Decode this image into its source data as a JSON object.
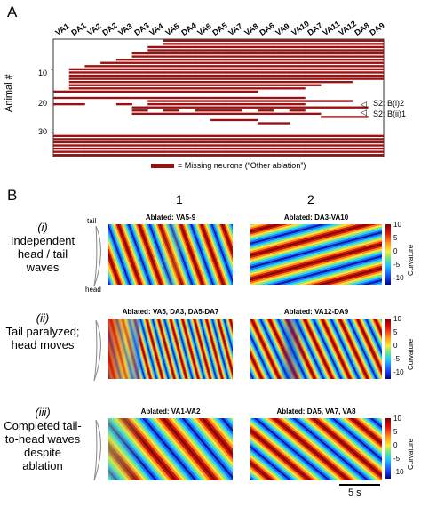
{
  "panel_a": {
    "letter": "A",
    "neurons": [
      "VA1",
      "DA1",
      "VA2",
      "DA2",
      "VA3",
      "DA3",
      "VA4",
      "VA5",
      "DA4",
      "VA6",
      "DA5",
      "VA7",
      "VA8",
      "DA6",
      "VA9",
      "VA10",
      "DA7",
      "VA11",
      "VA12",
      "DA8",
      "DA9"
    ],
    "y_axis_label": "Animal #",
    "y_ticks": [
      "10",
      "20",
      "30"
    ],
    "legend_text": "= Missing neurons (“Other ablation”)",
    "annotation_1": "S2: B(i)2",
    "annotation_2": "S2: B(ii)1",
    "bar_color": "#9b1111",
    "chart_data": {
      "type": "heatmap",
      "ylabel": "Animal #",
      "columns": [
        "VA1",
        "DA1",
        "VA2",
        "DA2",
        "VA3",
        "DA3",
        "VA4",
        "VA5",
        "DA4",
        "VA6",
        "DA5",
        "VA7",
        "VA8",
        "DA6",
        "VA9",
        "VA10",
        "DA7",
        "VA11",
        "VA12",
        "DA8",
        "DA9"
      ],
      "rows": [
        [
          0,
          0,
          0,
          0,
          0,
          0,
          0,
          1,
          1,
          1,
          1,
          1,
          1,
          1,
          1,
          1,
          1,
          1,
          1,
          1,
          1
        ],
        [
          0,
          0,
          0,
          0,
          0,
          0,
          0,
          1,
          1,
          1,
          1,
          1,
          1,
          1,
          1,
          1,
          1,
          1,
          1,
          1,
          1
        ],
        [
          0,
          0,
          0,
          0,
          0,
          0,
          1,
          1,
          1,
          1,
          1,
          1,
          1,
          1,
          1,
          1,
          1,
          1,
          1,
          1,
          1
        ],
        [
          0,
          0,
          0,
          0,
          0,
          0,
          1,
          1,
          1,
          1,
          1,
          1,
          1,
          1,
          1,
          1,
          1,
          1,
          1,
          1,
          1
        ],
        [
          0,
          0,
          0,
          0,
          0,
          1,
          1,
          1,
          1,
          1,
          1,
          1,
          1,
          1,
          1,
          1,
          1,
          1,
          1,
          1,
          1
        ],
        [
          0,
          0,
          0,
          0,
          0,
          1,
          1,
          1,
          1,
          1,
          1,
          1,
          1,
          1,
          1,
          1,
          1,
          1,
          1,
          1,
          1
        ],
        [
          0,
          0,
          0,
          0,
          1,
          1,
          1,
          1,
          1,
          1,
          1,
          1,
          1,
          1,
          1,
          1,
          1,
          1,
          1,
          1,
          1
        ],
        [
          0,
          0,
          0,
          1,
          1,
          1,
          1,
          1,
          1,
          1,
          1,
          1,
          1,
          1,
          1,
          1,
          1,
          1,
          1,
          1,
          1
        ],
        [
          0,
          0,
          1,
          1,
          1,
          1,
          1,
          1,
          1,
          1,
          1,
          1,
          1,
          1,
          1,
          1,
          1,
          1,
          1,
          1,
          1
        ],
        [
          0,
          1,
          1,
          1,
          1,
          1,
          1,
          1,
          1,
          1,
          1,
          1,
          1,
          1,
          1,
          1,
          1,
          1,
          1,
          1,
          1
        ],
        [
          0,
          1,
          1,
          1,
          1,
          1,
          1,
          1,
          1,
          1,
          1,
          1,
          1,
          1,
          1,
          1,
          1,
          1,
          1,
          1,
          1
        ],
        [
          0,
          1,
          1,
          1,
          1,
          1,
          1,
          1,
          1,
          1,
          1,
          1,
          1,
          1,
          1,
          1,
          1,
          1,
          1,
          1,
          1
        ],
        [
          0,
          1,
          1,
          1,
          1,
          1,
          1,
          1,
          1,
          1,
          1,
          1,
          1,
          1,
          1,
          1,
          1,
          1,
          1,
          1,
          1
        ],
        [
          0,
          1,
          1,
          1,
          1,
          1,
          1,
          1,
          1,
          1,
          1,
          1,
          1,
          1,
          1,
          1,
          1,
          1,
          1,
          0,
          0
        ],
        [
          0,
          1,
          1,
          1,
          1,
          1,
          1,
          1,
          1,
          1,
          1,
          1,
          1,
          1,
          1,
          1,
          1,
          0,
          0,
          0,
          0
        ],
        [
          0,
          1,
          1,
          1,
          1,
          1,
          1,
          1,
          1,
          1,
          1,
          1,
          1,
          1,
          1,
          1,
          0,
          0,
          0,
          0,
          0
        ],
        [
          1,
          1,
          1,
          1,
          1,
          1,
          1,
          1,
          1,
          1,
          1,
          1,
          1,
          0,
          0,
          0,
          0,
          0,
          0,
          0,
          0
        ],
        [
          0,
          0,
          0,
          0,
          0,
          0,
          0,
          0,
          0,
          0,
          0,
          0,
          0,
          0,
          0,
          0,
          0,
          0,
          0,
          0,
          0
        ],
        [
          1,
          1,
          1,
          1,
          1,
          1,
          1,
          1,
          1,
          1,
          1,
          1,
          1,
          1,
          1,
          1,
          0,
          0,
          0,
          0,
          0
        ],
        [
          0,
          0,
          0,
          0,
          0,
          0,
          1,
          1,
          1,
          1,
          1,
          1,
          1,
          1,
          1,
          1,
          1,
          1,
          1,
          0,
          0
        ],
        [
          1,
          1,
          0,
          0,
          1,
          0,
          1,
          1,
          1,
          1,
          1,
          1,
          1,
          1,
          1,
          1,
          0,
          0,
          0,
          0,
          0
        ],
        [
          0,
          0,
          0,
          0,
          0,
          1,
          1,
          1,
          1,
          1,
          1,
          1,
          1,
          1,
          1,
          1,
          1,
          1,
          1,
          1,
          0
        ],
        [
          0,
          0,
          0,
          0,
          0,
          1,
          0,
          1,
          0,
          1,
          1,
          1,
          0,
          1,
          0,
          1,
          0,
          0,
          0,
          0,
          0
        ],
        [
          0,
          0,
          0,
          0,
          0,
          1,
          1,
          1,
          1,
          1,
          1,
          1,
          1,
          1,
          1,
          1,
          1,
          0,
          0,
          0,
          0
        ],
        [
          0,
          0,
          0,
          0,
          0,
          0,
          0,
          0,
          0,
          0,
          0,
          0,
          0,
          0,
          0,
          0,
          0,
          1,
          1,
          1,
          0
        ],
        [
          0,
          0,
          0,
          0,
          0,
          0,
          0,
          0,
          0,
          0,
          1,
          1,
          1,
          0,
          0,
          0,
          0,
          0,
          0,
          0,
          0
        ],
        [
          0,
          0,
          0,
          0,
          0,
          0,
          0,
          0,
          0,
          0,
          0,
          0,
          0,
          1,
          1,
          0,
          0,
          0,
          0,
          0,
          0
        ],
        [
          0,
          0,
          0,
          0,
          0,
          0,
          0,
          0,
          0,
          0,
          0,
          0,
          0,
          0,
          0,
          0,
          0,
          0,
          0,
          0,
          0
        ],
        [
          0,
          0,
          0,
          0,
          0,
          0,
          0,
          0,
          0,
          0,
          0,
          0,
          0,
          0,
          0,
          0,
          0,
          0,
          0,
          0,
          0
        ],
        [
          0,
          0,
          0,
          0,
          0,
          0,
          0,
          0,
          0,
          0,
          0,
          0,
          0,
          0,
          0,
          0,
          0,
          0,
          0,
          0,
          0
        ],
        [
          1,
          1,
          1,
          1,
          1,
          1,
          1,
          1,
          1,
          1,
          1,
          1,
          1,
          1,
          1,
          1,
          1,
          1,
          1,
          1,
          1
        ],
        [
          1,
          1,
          1,
          1,
          1,
          1,
          1,
          1,
          1,
          1,
          1,
          1,
          1,
          1,
          1,
          1,
          1,
          1,
          1,
          1,
          1
        ],
        [
          1,
          1,
          1,
          1,
          1,
          1,
          1,
          1,
          1,
          1,
          1,
          1,
          1,
          1,
          1,
          1,
          1,
          1,
          1,
          1,
          1
        ],
        [
          1,
          1,
          1,
          1,
          1,
          1,
          1,
          1,
          1,
          1,
          1,
          1,
          1,
          1,
          1,
          1,
          1,
          1,
          1,
          1,
          1
        ],
        [
          1,
          1,
          1,
          1,
          1,
          1,
          1,
          1,
          1,
          1,
          1,
          1,
          1,
          1,
          1,
          1,
          1,
          1,
          1,
          1,
          1
        ],
        [
          1,
          1,
          1,
          1,
          1,
          1,
          1,
          1,
          1,
          1,
          1,
          1,
          1,
          1,
          1,
          1,
          1,
          1,
          1,
          1,
          1
        ],
        [
          1,
          1,
          1,
          1,
          1,
          1,
          1,
          1,
          1,
          1,
          1,
          1,
          1,
          1,
          1,
          1,
          1,
          1,
          1,
          1,
          1
        ]
      ]
    }
  },
  "panel_b": {
    "letter": "B",
    "col_1": "1",
    "col_2": "2",
    "tail_label": "tail",
    "head_label": "head",
    "row_i": {
      "num": "(i)",
      "text": "Independent head / tail waves",
      "title_1": "Ablated: VA5-9",
      "title_2": "Ablated: DA3-VA10"
    },
    "row_ii": {
      "num": "(ii)",
      "text": "Tail paralyzed; head moves",
      "title_1": "Ablated: VA5, DA3, DA5-DA7",
      "title_2": "Ablated: VA12-DA9"
    },
    "row_iii": {
      "num": "(iii)",
      "text": "Completed tail-to-head waves despite ablation",
      "title_1": "Ablated: VA1-VA2",
      "title_2": "Ablated: DA5, VA7, VA8"
    },
    "colorbar": {
      "label": "Curvature",
      "ticks": [
        "10",
        "5",
        "0",
        "-5",
        "-10"
      ]
    },
    "scale_bar": "5 s"
  }
}
